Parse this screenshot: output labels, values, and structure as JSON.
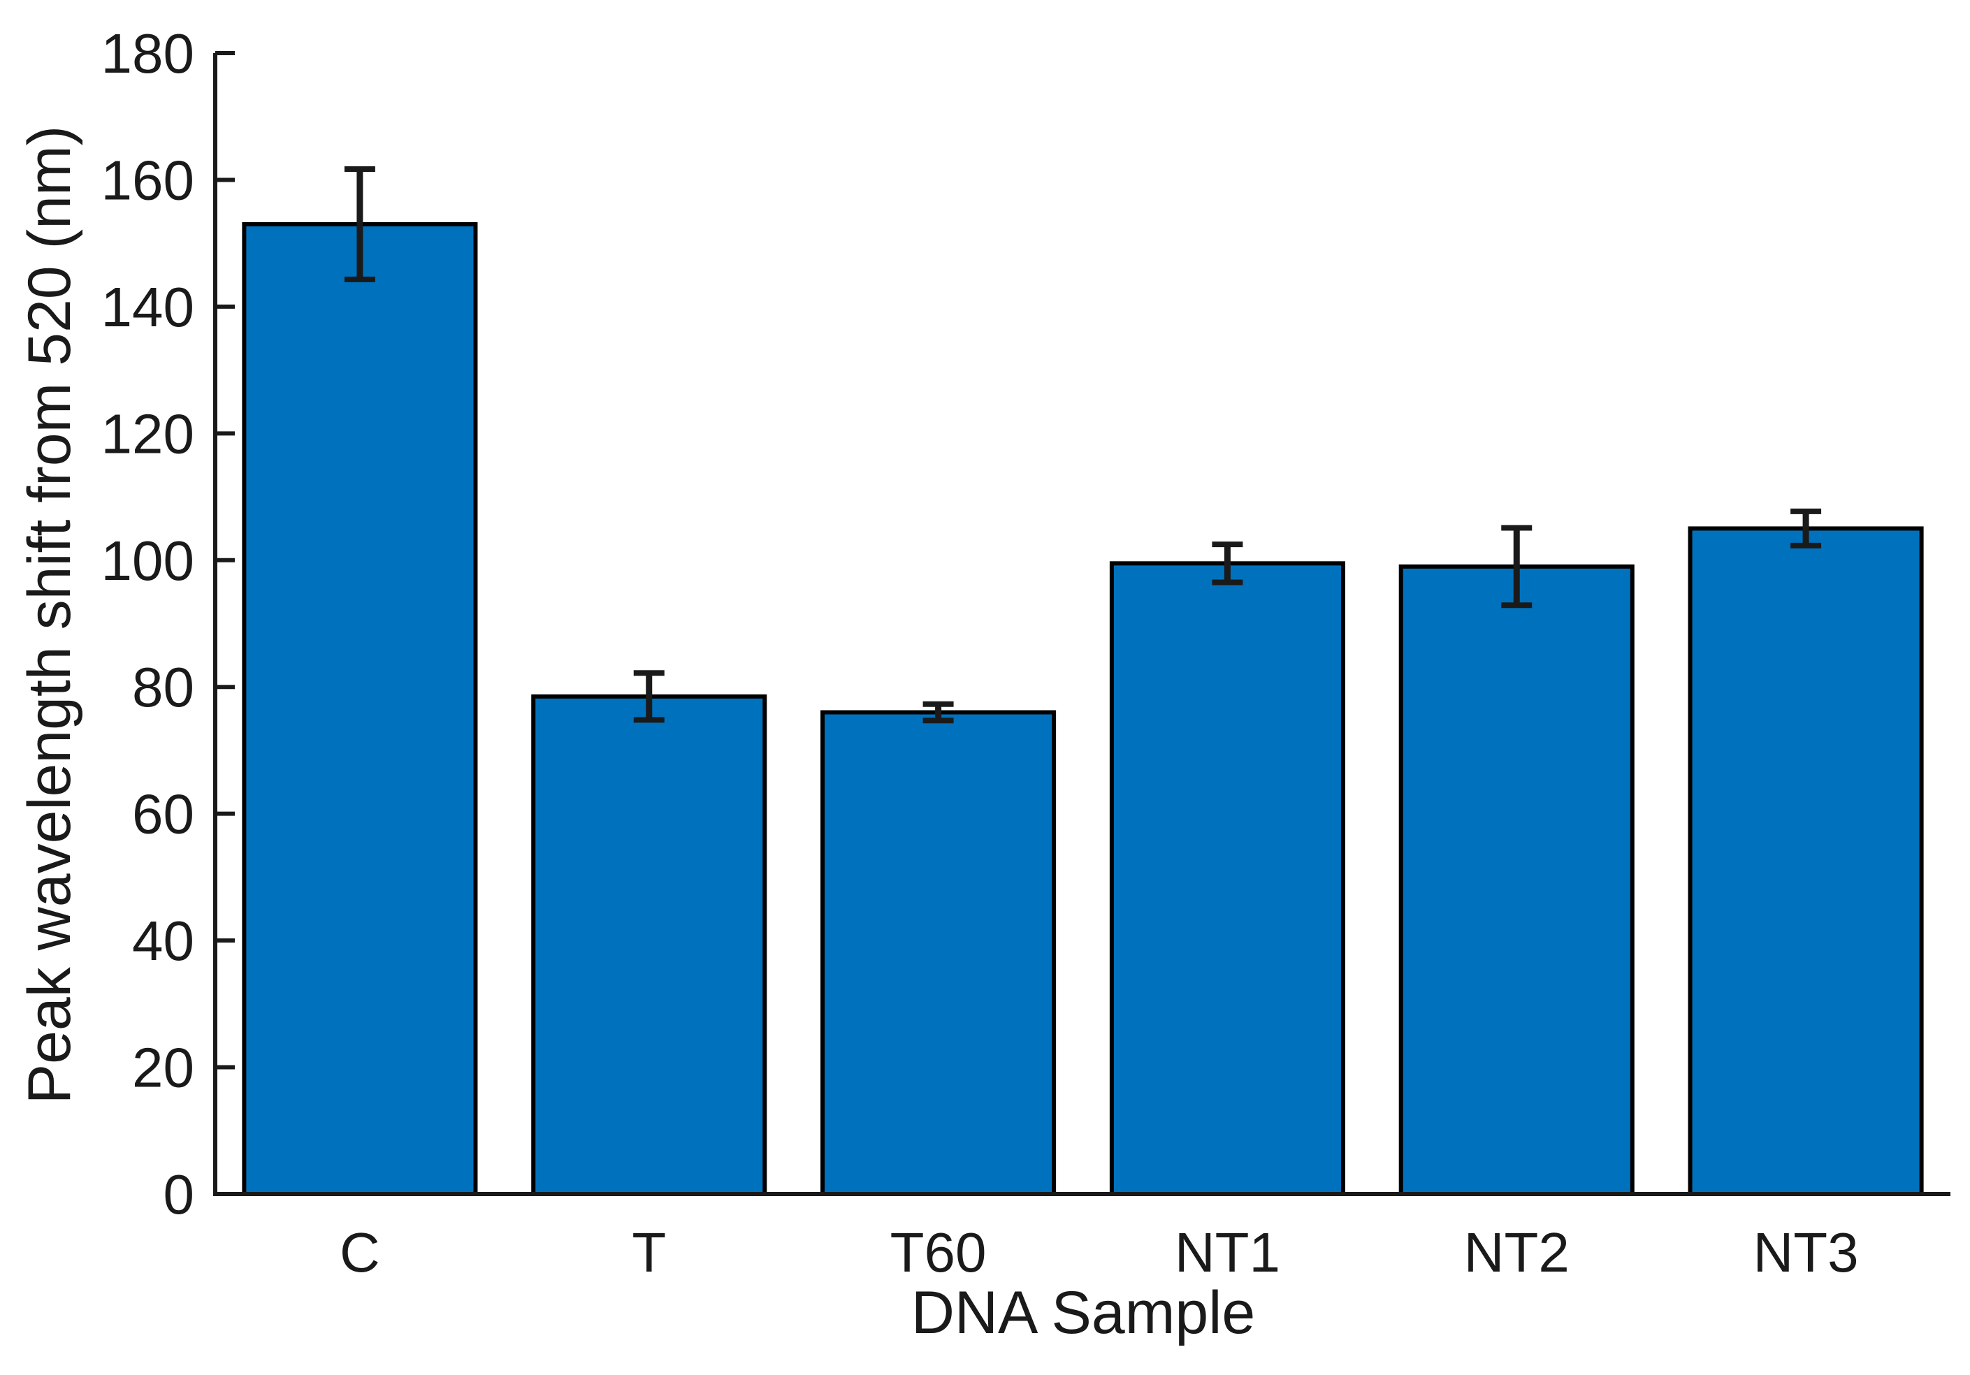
{
  "chart_data": {
    "type": "bar",
    "title": "",
    "xlabel": "DNA Sample",
    "ylabel": "Peak wavelength shift from 520 (nm)",
    "categories": [
      "C",
      "T",
      "T60",
      "NT1",
      "NT2",
      "NT3"
    ],
    "values": [
      153,
      78.5,
      76,
      99.5,
      99,
      105
    ],
    "errors": [
      8.7,
      3.7,
      1.3,
      3.0,
      6.1,
      2.7
    ],
    "ylim": [
      0,
      180
    ],
    "ytick_step": 20,
    "ytick_labels": [
      "0",
      "20",
      "40",
      "60",
      "80",
      "100",
      "120",
      "140",
      "160",
      "180"
    ],
    "grid": false,
    "legend": "none",
    "bar_color": "#0072BD",
    "bar_edge_color": "#000000",
    "errorbar_color": "#1a1a1a",
    "axis_color": "#1a1a1a",
    "text_color": "#1a1a1a",
    "background_color": "#ffffff"
  }
}
